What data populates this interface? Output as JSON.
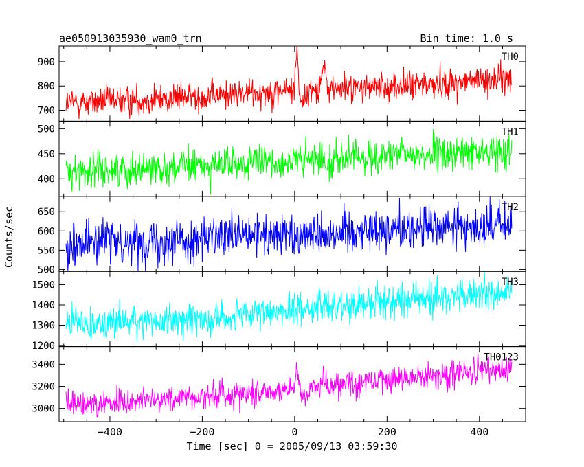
{
  "header": {
    "title": "ae050913035930_wam0_trn",
    "bin_time": "Bin time: 1.0 s"
  },
  "chart_data": {
    "type": "line",
    "title": "ae050913035930_wam0_trn",
    "xlabel": "Time [sec] 0 = 2005/09/13 03:59:30",
    "ylabel": "Counts/sec",
    "xlim": [
      -510,
      500
    ],
    "x_ticks": [
      -400,
      -200,
      0,
      200,
      400
    ],
    "x_tick_labels": [
      "−400",
      "−200",
      "0",
      "200",
      "400"
    ],
    "x_range_data": [
      -495,
      470
    ],
    "bin_time_s": 1.0,
    "grid": false,
    "legend": "none",
    "panels": [
      {
        "name": "TH0",
        "color": "#ff0000",
        "ylim": [
          655,
          965
        ],
        "y_ticks": [
          700,
          800,
          900
        ],
        "trend": [
          [
            -495,
            730
          ],
          [
            -300,
            745
          ],
          [
            -100,
            770
          ],
          [
            0,
            785
          ],
          [
            200,
            795
          ],
          [
            470,
            830
          ]
        ],
        "noise": 30,
        "features": [
          [
            5,
            3,
            175
          ],
          [
            18,
            10,
            -45
          ],
          [
            62,
            5,
            80
          ]
        ]
      },
      {
        "name": "TH1",
        "color": "#00ff00",
        "ylim": [
          365,
          515
        ],
        "y_ticks": [
          400,
          450,
          500
        ],
        "trend": [
          [
            -495,
            415
          ],
          [
            -200,
            425
          ],
          [
            0,
            435
          ],
          [
            200,
            445
          ],
          [
            470,
            455
          ]
        ],
        "noise": 17,
        "features": []
      },
      {
        "name": "TH2",
        "color": "#0000ff",
        "ylim": [
          495,
          690
        ],
        "y_ticks": [
          500,
          550,
          600,
          650
        ],
        "trend": [
          [
            -495,
            570
          ],
          [
            -200,
            578
          ],
          [
            0,
            592
          ],
          [
            200,
            605
          ],
          [
            470,
            615
          ]
        ],
        "noise": 28,
        "features": []
      },
      {
        "name": "TH3",
        "color": "#00ffff",
        "ylim": [
          1195,
          1565
        ],
        "y_ticks": [
          1200,
          1300,
          1400,
          1500
        ],
        "trend": [
          [
            -495,
            1310
          ],
          [
            -300,
            1320
          ],
          [
            -100,
            1345
          ],
          [
            0,
            1380
          ],
          [
            200,
            1420
          ],
          [
            470,
            1460
          ]
        ],
        "noise": 40,
        "features": []
      },
      {
        "name": "TH0123",
        "color": "#ff00ff",
        "ylim": [
          2880,
          3560
        ],
        "y_ticks": [
          3000,
          3200,
          3400
        ],
        "trend": [
          [
            -495,
            3030
          ],
          [
            -300,
            3080
          ],
          [
            -100,
            3140
          ],
          [
            0,
            3180
          ],
          [
            200,
            3260
          ],
          [
            470,
            3360
          ]
        ],
        "noise": 60,
        "features": [
          [
            6,
            4,
            170
          ],
          [
            20,
            10,
            -60
          ],
          [
            62,
            5,
            60
          ]
        ]
      }
    ]
  }
}
